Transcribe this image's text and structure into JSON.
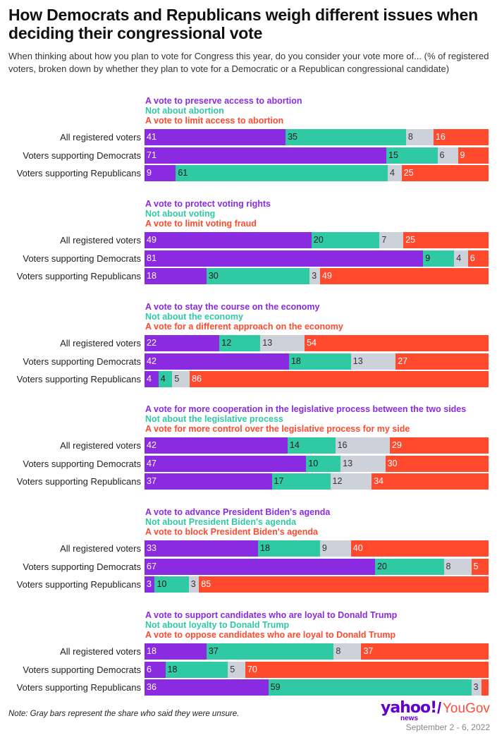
{
  "title": "How Democrats and Republicans weigh different issues when deciding their congressional vote",
  "subtitle": "When thinking about how you plan to vote for Congress this year, do you consider your vote more of... (% of registered voters, broken down by whether they plan to vote for a Democratic or a Republican congressional candidate)",
  "note": "Note: Gray bars represent the share who said they were unsure.",
  "source": {
    "yahoo": "yahoo!",
    "news": "news",
    "separator": "/",
    "yougov": "YouGov",
    "date": "September 2 - 6, 2022"
  },
  "colors": {
    "option1": "#8a2be2",
    "option2": "#2fcaa4",
    "unsure": "#cdd1d9",
    "option3": "#ff4a2e"
  },
  "chart_data": [
    {
      "type": "bar",
      "stacked": true,
      "legend": [
        "A vote to preserve access to abortion",
        "Not about abortion",
        "A vote to limit access to abortion"
      ],
      "categories": [
        "All registered voters",
        "Voters supporting Democrats",
        "Voters supporting Republicans"
      ],
      "series": [
        {
          "name": "A vote to preserve access to abortion",
          "values": [
            41,
            71,
            9
          ]
        },
        {
          "name": "Not about abortion",
          "values": [
            35,
            15,
            61
          ]
        },
        {
          "values": [
            8,
            6,
            4
          ]
        },
        {
          "name": "A vote to limit access to abortion",
          "values": [
            16,
            9,
            25
          ]
        }
      ]
    },
    {
      "type": "bar",
      "stacked": true,
      "legend": [
        "A vote to protect voting rights",
        "Not about voting",
        "A vote to limit voting fraud"
      ],
      "categories": [
        "All registered voters",
        "Voters supporting Democrats",
        "Voters supporting Republicans"
      ],
      "series": [
        {
          "name": "A vote to protect voting rights",
          "values": [
            49,
            81,
            18
          ]
        },
        {
          "name": "Not about voting",
          "values": [
            20,
            9,
            30
          ]
        },
        {
          "values": [
            7,
            4,
            3
          ]
        },
        {
          "name": "A vote to limit voting fraud",
          "values": [
            25,
            6,
            49
          ]
        }
      ]
    },
    {
      "type": "bar",
      "stacked": true,
      "legend": [
        "A vote to stay the course on the economy",
        "Not about the economy",
        "A vote for a different approach on the economy"
      ],
      "categories": [
        "All registered voters",
        "Voters supporting Democrats",
        "Voters supporting Republicans"
      ],
      "series": [
        {
          "name": "A vote to stay the course on the economy",
          "values": [
            22,
            42,
            4
          ]
        },
        {
          "name": "Not about the economy",
          "values": [
            12,
            18,
            4
          ]
        },
        {
          "values": [
            13,
            13,
            5
          ]
        },
        {
          "name": "A vote for a different approach on the economy",
          "values": [
            54,
            27,
            86
          ]
        }
      ]
    },
    {
      "type": "bar",
      "stacked": true,
      "legend": [
        "A vote for more cooperation in the legislative process between the two sides",
        "Not about the legislative process",
        "A vote for more control over the legislative process for my side"
      ],
      "categories": [
        "All registered voters",
        "Voters supporting Democrats",
        "Voters supporting Republicans"
      ],
      "series": [
        {
          "name": "A vote for more cooperation in the legislative process between the two sides",
          "values": [
            42,
            47,
            37
          ]
        },
        {
          "name": "Not about the legislative process",
          "values": [
            14,
            10,
            17
          ]
        },
        {
          "values": [
            16,
            13,
            12
          ]
        },
        {
          "name": "A vote for more control over the legislative process for my side",
          "values": [
            29,
            30,
            34
          ]
        }
      ]
    },
    {
      "type": "bar",
      "stacked": true,
      "legend": [
        "A vote to advance President Biden's agenda",
        "Not about President Biden's agenda",
        "A vote to block President Biden's agenda"
      ],
      "categories": [
        "All registered voters",
        "Voters supporting Democrats",
        "Voters supporting Republicans"
      ],
      "series": [
        {
          "name": "A vote to advance President Biden's agenda",
          "values": [
            33,
            67,
            3
          ]
        },
        {
          "name": "Not about President Biden's agenda",
          "values": [
            18,
            20,
            10
          ]
        },
        {
          "values": [
            9,
            8,
            3
          ]
        },
        {
          "name": "A vote to block President Biden's agenda",
          "values": [
            40,
            5,
            85
          ]
        }
      ]
    },
    {
      "type": "bar",
      "stacked": true,
      "legend": [
        "A vote to support candidates who are loyal to Donald Trump",
        "Not about loyalty to Donald Trump",
        "A vote to oppose candidates who are loyal to Donald Trump"
      ],
      "categories": [
        "All registered voters",
        "Voters supporting Democrats",
        "Voters supporting Republicans"
      ],
      "series": [
        {
          "name": "A vote to support candidates who are loyal to Donald Trump",
          "values": [
            18,
            6,
            36
          ]
        },
        {
          "name": "Not about loyalty to Donald Trump",
          "values": [
            37,
            18,
            59
          ]
        },
        {
          "values": [
            8,
            5,
            3
          ]
        },
        {
          "name": "A vote to oppose candidates who are loyal to Donald Trump",
          "values": [
            37,
            70,
            2
          ]
        }
      ]
    }
  ]
}
